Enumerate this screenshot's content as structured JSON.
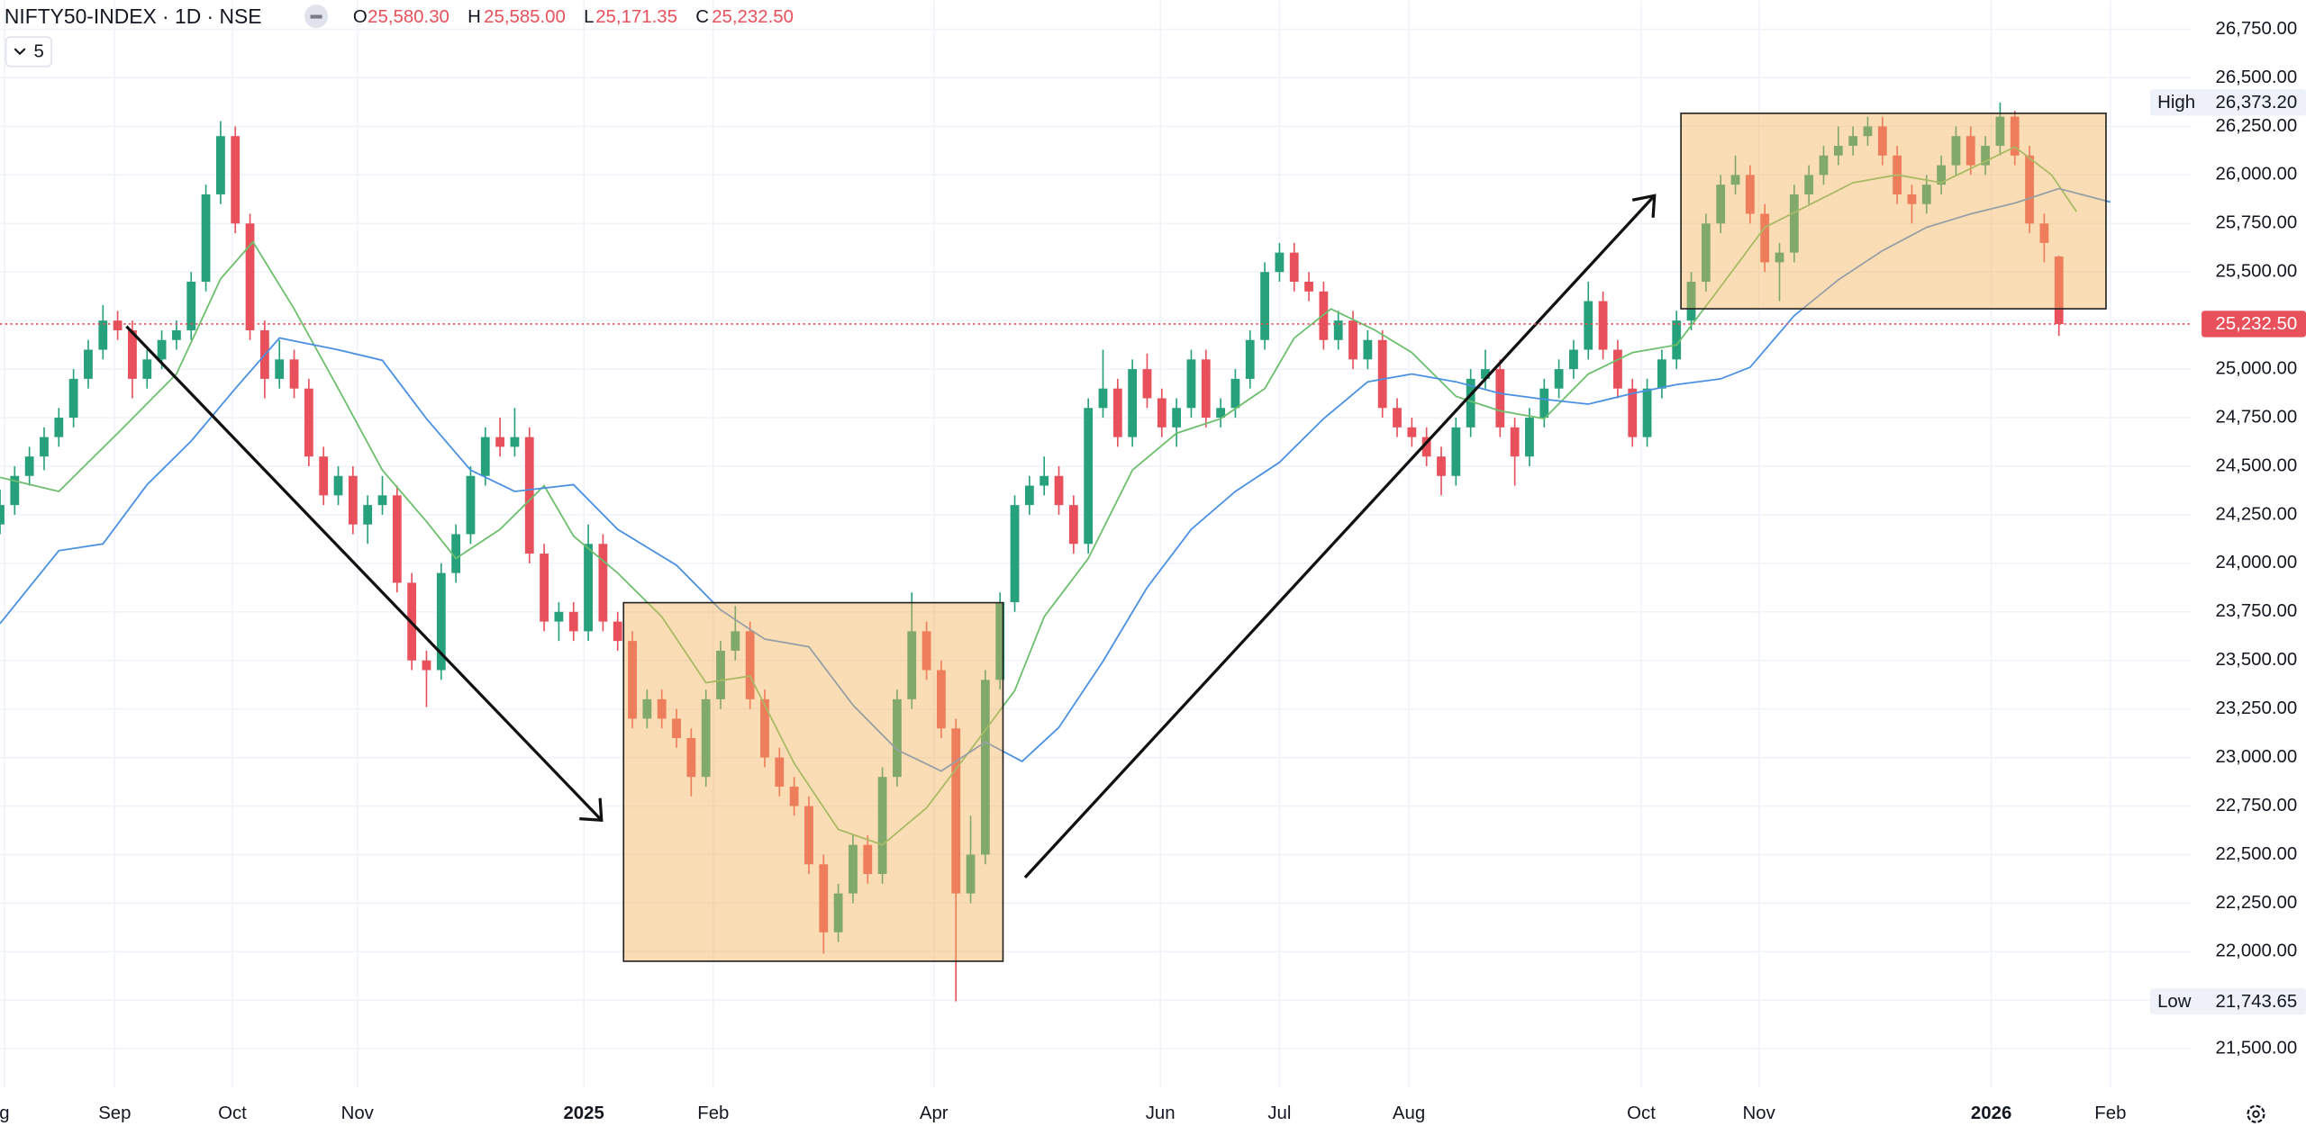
{
  "header": {
    "title": "NIFTY50-INDEX · 1D · NSE",
    "ohlc": [
      {
        "key": "O",
        "value": "25,580.30"
      },
      {
        "key": "H",
        "value": "25,585.00"
      },
      {
        "key": "L",
        "value": "25,171.35"
      },
      {
        "key": "C",
        "value": "25,232.50"
      }
    ],
    "interval_count": "5"
  },
  "chart_data": {
    "type": "candlestick",
    "up_color": "#26a17b",
    "down_color": "#e8505b",
    "grid": true,
    "xlim": [
      0,
      149
    ],
    "ylim": [
      21300,
      26900
    ],
    "xticks": [
      {
        "value": 0.3,
        "label": "g"
      },
      {
        "value": 7.8,
        "label": "Sep"
      },
      {
        "value": 15.8,
        "label": "Oct"
      },
      {
        "value": 24.3,
        "label": "Nov"
      },
      {
        "value": 39.7,
        "label": "2025"
      },
      {
        "value": 48.5,
        "label": "Feb"
      },
      {
        "value": 63.5,
        "label": "Apr"
      },
      {
        "value": 78.9,
        "label": "Jun"
      },
      {
        "value": 87,
        "label": "Jul"
      },
      {
        "value": 95.8,
        "label": "Aug"
      },
      {
        "value": 111.6,
        "label": "Oct"
      },
      {
        "value": 119.6,
        "label": "Nov"
      },
      {
        "value": 135.4,
        "label": "2026"
      },
      {
        "value": 143.5,
        "label": "Feb"
      }
    ],
    "yticks": [
      {
        "value": 21500,
        "label": "21,500.00"
      },
      {
        "value": 21750,
        "label": "21,750.00"
      },
      {
        "value": 22000,
        "label": "22,000.00"
      },
      {
        "value": 22250,
        "label": "22,250.00"
      },
      {
        "value": 22500,
        "label": "22,500.00"
      },
      {
        "value": 22750,
        "label": "22,750.00"
      },
      {
        "value": 23000,
        "label": "23,000.00"
      },
      {
        "value": 23250,
        "label": "23,250.00"
      },
      {
        "value": 23500,
        "label": "23,500.00"
      },
      {
        "value": 23750,
        "label": "23,750.00"
      },
      {
        "value": 24000,
        "label": "24,000.00"
      },
      {
        "value": 24250,
        "label": "24,250.00"
      },
      {
        "value": 24500,
        "label": "24,500.00"
      },
      {
        "value": 24750,
        "label": "24,750.00"
      },
      {
        "value": 25000,
        "label": "25,000.00"
      },
      {
        "value": 25250,
        "label": "25,250.00"
      },
      {
        "value": 25500,
        "label": "25,500.00"
      },
      {
        "value": 25750,
        "label": "25,750.00"
      },
      {
        "value": 26000,
        "label": "26,000.00"
      },
      {
        "value": 26250,
        "label": "26,250.00"
      },
      {
        "value": 26500,
        "label": "26,500.00"
      },
      {
        "value": 26750,
        "label": "26,750.00"
      }
    ],
    "ohlc": [
      [
        24200,
        24380,
        24150,
        24300
      ],
      [
        24300,
        24500,
        24250,
        24450
      ],
      [
        24450,
        24600,
        24400,
        24550
      ],
      [
        24550,
        24700,
        24480,
        24650
      ],
      [
        24650,
        24800,
        24600,
        24750
      ],
      [
        24750,
        25000,
        24700,
        24950
      ],
      [
        24950,
        25150,
        24900,
        25100
      ],
      [
        25100,
        25330,
        25050,
        25250
      ],
      [
        25250,
        25300,
        25150,
        25200
      ],
      [
        25200,
        25250,
        24850,
        24950
      ],
      [
        24950,
        25100,
        24900,
        25050
      ],
      [
        25050,
        25200,
        25000,
        25150
      ],
      [
        25150,
        25250,
        25100,
        25200
      ],
      [
        25200,
        25500,
        25150,
        25450
      ],
      [
        25450,
        25950,
        25400,
        25900
      ],
      [
        25900,
        26277,
        25850,
        26200
      ],
      [
        26200,
        26250,
        25700,
        25750
      ],
      [
        25750,
        25800,
        25150,
        25200
      ],
      [
        25200,
        25250,
        24850,
        24950
      ],
      [
        24950,
        25150,
        24900,
        25050
      ],
      [
        25050,
        25100,
        24850,
        24900
      ],
      [
        24900,
        24950,
        24500,
        24550
      ],
      [
        24550,
        24600,
        24300,
        24350
      ],
      [
        24350,
        24500,
        24300,
        24450
      ],
      [
        24450,
        24500,
        24150,
        24200
      ],
      [
        24200,
        24350,
        24100,
        24300
      ],
      [
        24300,
        24450,
        24250,
        24350
      ],
      [
        24350,
        24400,
        23850,
        23900
      ],
      [
        23900,
        23950,
        23450,
        23500
      ],
      [
        23500,
        23550,
        23260,
        23450
      ],
      [
        23450,
        24000,
        23400,
        23950
      ],
      [
        23950,
        24200,
        23900,
        24150
      ],
      [
        24150,
        24500,
        24100,
        24450
      ],
      [
        24450,
        24700,
        24400,
        24650
      ],
      [
        24650,
        24750,
        24550,
        24600
      ],
      [
        24600,
        24800,
        24550,
        24650
      ],
      [
        24650,
        24700,
        24000,
        24050
      ],
      [
        24050,
        24100,
        23650,
        23700
      ],
      [
        23700,
        23800,
        23600,
        23750
      ],
      [
        23750,
        23800,
        23600,
        23650
      ],
      [
        23650,
        24200,
        23600,
        24100
      ],
      [
        24100,
        24150,
        23650,
        23700
      ],
      [
        23700,
        23750,
        23550,
        23600
      ],
      [
        23600,
        23650,
        23150,
        23200
      ],
      [
        23200,
        23350,
        23150,
        23300
      ],
      [
        23300,
        23350,
        23150,
        23200
      ],
      [
        23200,
        23250,
        23050,
        23100
      ],
      [
        23100,
        23150,
        22800,
        22900
      ],
      [
        22900,
        23350,
        22850,
        23300
      ],
      [
        23300,
        23600,
        23250,
        23550
      ],
      [
        23550,
        23780,
        23500,
        23650
      ],
      [
        23650,
        23700,
        23250,
        23300
      ],
      [
        23300,
        23350,
        22950,
        23000
      ],
      [
        23000,
        23050,
        22800,
        22850
      ],
      [
        22850,
        22900,
        22700,
        22750
      ],
      [
        22750,
        22800,
        22400,
        22450
      ],
      [
        22450,
        22500,
        21990,
        22100
      ],
      [
        22100,
        22350,
        22050,
        22300
      ],
      [
        22300,
        22600,
        22250,
        22550
      ],
      [
        22550,
        22600,
        22350,
        22400
      ],
      [
        22400,
        22950,
        22350,
        22900
      ],
      [
        22900,
        23350,
        22850,
        23300
      ],
      [
        23300,
        23850,
        23250,
        23650
      ],
      [
        23650,
        23700,
        23400,
        23450
      ],
      [
        23450,
        23500,
        23100,
        23150
      ],
      [
        23150,
        23200,
        21743.65,
        22300
      ],
      [
        22300,
        22700,
        22250,
        22500
      ],
      [
        22500,
        23450,
        22450,
        23400
      ],
      [
        23400,
        23850,
        23350,
        23800
      ],
      [
        23800,
        24350,
        23750,
        24300
      ],
      [
        24300,
        24450,
        24250,
        24400
      ],
      [
        24400,
        24550,
        24350,
        24450
      ],
      [
        24450,
        24500,
        24250,
        24300
      ],
      [
        24300,
        24350,
        24050,
        24100
      ],
      [
        24100,
        24850,
        24050,
        24800
      ],
      [
        24800,
        25100,
        24750,
        24900
      ],
      [
        24900,
        24950,
        24600,
        24650
      ],
      [
        24650,
        25050,
        24600,
        25000
      ],
      [
        25000,
        25080,
        24800,
        24850
      ],
      [
        24850,
        24900,
        24650,
        24700
      ],
      [
        24700,
        24850,
        24600,
        24800
      ],
      [
        24800,
        25100,
        24750,
        25050
      ],
      [
        25050,
        25100,
        24700,
        24750
      ],
      [
        24750,
        24850,
        24700,
        24800
      ],
      [
        24800,
        25000,
        24750,
        24950
      ],
      [
        24950,
        25200,
        24900,
        25150
      ],
      [
        25150,
        25550,
        25100,
        25500
      ],
      [
        25500,
        25650,
        25450,
        25600
      ],
      [
        25600,
        25650,
        25400,
        25450
      ],
      [
        25450,
        25500,
        25350,
        25400
      ],
      [
        25400,
        25450,
        25100,
        25150
      ],
      [
        25150,
        25300,
        25100,
        25250
      ],
      [
        25250,
        25300,
        25000,
        25050
      ],
      [
        25050,
        25200,
        25000,
        25150
      ],
      [
        25150,
        25200,
        24750,
        24800
      ],
      [
        24800,
        24850,
        24650,
        24700
      ],
      [
        24700,
        24750,
        24600,
        24650
      ],
      [
        24650,
        24700,
        24500,
        24550
      ],
      [
        24550,
        24600,
        24350,
        24450
      ],
      [
        24450,
        24750,
        24400,
        24700
      ],
      [
        24700,
        25000,
        24650,
        24950
      ],
      [
        24950,
        25100,
        24900,
        25000
      ],
      [
        25000,
        25050,
        24650,
        24700
      ],
      [
        24700,
        24750,
        24400,
        24550
      ],
      [
        24550,
        24800,
        24500,
        24750
      ],
      [
        24750,
        24950,
        24700,
        24900
      ],
      [
        24900,
        25050,
        24850,
        25000
      ],
      [
        25000,
        25150,
        24950,
        25100
      ],
      [
        25100,
        25450,
        25050,
        25350
      ],
      [
        25350,
        25400,
        25050,
        25100
      ],
      [
        25100,
        25150,
        24850,
        24900
      ],
      [
        24900,
        24950,
        24600,
        24650
      ],
      [
        24650,
        24950,
        24600,
        24900
      ],
      [
        24900,
        25100,
        24850,
        25050
      ],
      [
        25050,
        25300,
        25000,
        25250
      ],
      [
        25250,
        25500,
        25200,
        25450
      ],
      [
        25450,
        25800,
        25400,
        25750
      ],
      [
        25750,
        26000,
        25700,
        25950
      ],
      [
        25950,
        26100,
        25900,
        26000
      ],
      [
        26000,
        26050,
        25750,
        25800
      ],
      [
        25800,
        25850,
        25500,
        25550
      ],
      [
        25550,
        25650,
        25350,
        25600
      ],
      [
        25600,
        25950,
        25550,
        25900
      ],
      [
        25900,
        26050,
        25850,
        26000
      ],
      [
        26000,
        26150,
        25950,
        26100
      ],
      [
        26100,
        26250,
        26050,
        26150
      ],
      [
        26150,
        26250,
        26100,
        26200
      ],
      [
        26200,
        26300,
        26150,
        26250
      ],
      [
        26250,
        26300,
        26050,
        26100
      ],
      [
        26100,
        26150,
        25850,
        25900
      ],
      [
        25900,
        25950,
        25750,
        25850
      ],
      [
        25850,
        26000,
        25800,
        25950
      ],
      [
        25950,
        26100,
        25900,
        26050
      ],
      [
        26050,
        26250,
        26000,
        26200
      ],
      [
        26200,
        26250,
        26000,
        26050
      ],
      [
        26050,
        26200,
        26000,
        26150
      ],
      [
        26150,
        26373.2,
        26100,
        26300
      ],
      [
        26300,
        26330,
        26050,
        26100
      ],
      [
        26100,
        26150,
        25700,
        25750
      ],
      [
        25750,
        25800,
        25550,
        25650
      ],
      [
        25580.3,
        25585,
        25171.35,
        25232.5
      ]
    ],
    "series": [
      {
        "color": "#6cbf6c",
        "x": [
          0,
          4,
          8,
          12,
          15,
          17.2,
          20,
          23,
          26,
          29,
          31,
          34,
          37,
          39,
          42,
          45,
          48,
          51,
          54,
          57,
          60,
          63,
          66,
          69,
          71,
          74,
          77,
          80,
          83,
          86,
          88,
          90.5,
          93.5,
          96,
          99,
          102,
          105,
          108,
          111,
          114,
          117,
          120,
          123,
          126,
          129,
          132,
          135,
          137,
          139.5,
          141.2
        ],
        "values": [
          24443,
          24370,
          24670,
          24975,
          25465,
          25655,
          25310,
          24900,
          24480,
          24215,
          24025,
          24175,
          24400,
          24140,
          23950,
          23725,
          23385,
          23420,
          22970,
          22630,
          22550,
          22740,
          23040,
          23345,
          23725,
          24025,
          24480,
          24670,
          24745,
          24900,
          25160,
          25310,
          25200,
          25085,
          24860,
          24785,
          24745,
          24975,
          25085,
          25125,
          25425,
          25730,
          25845,
          25960,
          26000,
          25960,
          26070,
          26145,
          26000,
          25810
        ]
      },
      {
        "color": "#4a90e2",
        "x": [
          0,
          4,
          7,
          10,
          13,
          16,
          19,
          23,
          26,
          29,
          32,
          35,
          39,
          42,
          46,
          49,
          52,
          55,
          58,
          61,
          64,
          67,
          69.5,
          72,
          75,
          78,
          81,
          84,
          87,
          90,
          93,
          96,
          99,
          102,
          105,
          108,
          111,
          114,
          117,
          119,
          122,
          125,
          128,
          131,
          134,
          137,
          140,
          143.5
        ],
        "values": [
          23690,
          24065,
          24100,
          24405,
          24630,
          24900,
          25160,
          25100,
          25045,
          24745,
          24480,
          24370,
          24405,
          24175,
          23990,
          23760,
          23610,
          23570,
          23270,
          23040,
          22930,
          23080,
          22980,
          23155,
          23495,
          23875,
          24175,
          24370,
          24520,
          24745,
          24935,
          24975,
          24935,
          24875,
          24845,
          24820,
          24875,
          24920,
          24950,
          25010,
          25275,
          25460,
          25610,
          25730,
          25800,
          25855,
          25930,
          25860
        ]
      }
    ],
    "price_tags": {
      "high_label": "High",
      "high": "26,373.20",
      "last": "25,232.50",
      "low_label": "Low",
      "low": "21,743.65"
    }
  }
}
